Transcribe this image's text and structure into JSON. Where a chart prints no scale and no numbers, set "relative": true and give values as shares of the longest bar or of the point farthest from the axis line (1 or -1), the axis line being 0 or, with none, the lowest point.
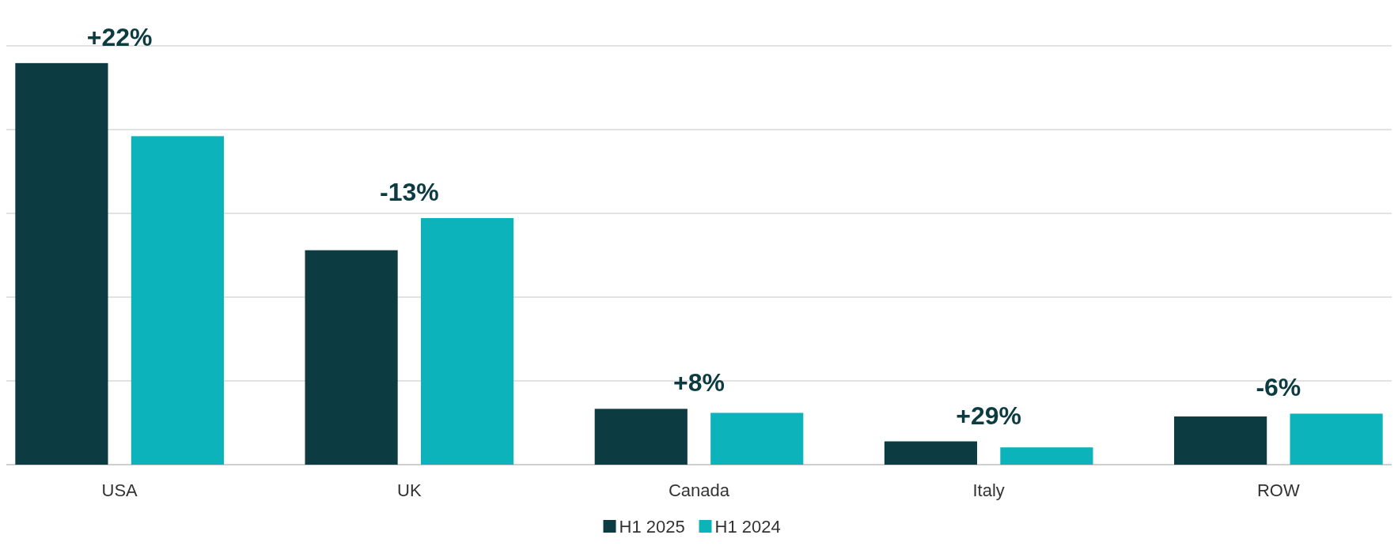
{
  "chart_data": {
    "type": "bar",
    "relative": true,
    "categories": [
      "USA",
      "UK",
      "Canada",
      "Italy",
      "ROW"
    ],
    "series": [
      {
        "name": "H1 2025",
        "color": "#0d3b42",
        "values": [
          1,
          0.534,
          0.139,
          0.058,
          0.12
        ]
      },
      {
        "name": "H1 2024",
        "color": "#0db3bb",
        "values": [
          0.818,
          0.614,
          0.129,
          0.043,
          0.127
        ]
      }
    ],
    "annotations": [
      "+22%",
      "-13%",
      "+8%",
      "+29%",
      "-6%"
    ],
    "grid": "y",
    "legend": "bottom"
  }
}
